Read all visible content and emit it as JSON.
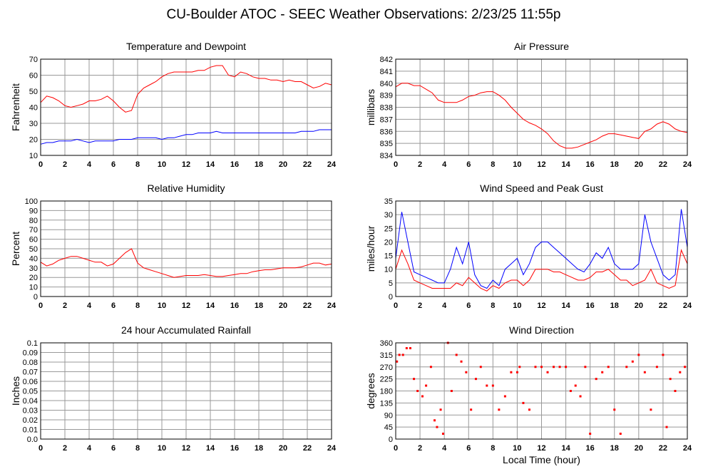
{
  "title": "CU-Boulder ATOC - SEEC Weather Observations: 2/23/25 11:55p",
  "chart_data": [
    {
      "type": "line",
      "title": "Temperature and Dewpoint",
      "ylabel": "Fahrenheit",
      "x": [
        0,
        0.5,
        1,
        1.5,
        2,
        2.5,
        3,
        3.5,
        4,
        4.5,
        5,
        5.5,
        6,
        6.5,
        7,
        7.5,
        8,
        8.5,
        9,
        9.5,
        10,
        10.5,
        11,
        11.5,
        12,
        12.5,
        13,
        13.5,
        14,
        14.5,
        15,
        15.5,
        16,
        16.5,
        17,
        17.5,
        18,
        18.5,
        19,
        19.5,
        20,
        20.5,
        21,
        21.5,
        22,
        22.5,
        23,
        23.5,
        24
      ],
      "series": [
        {
          "color": "#ff0000",
          "values": [
            43,
            47,
            46,
            44,
            41,
            40,
            41,
            42,
            44,
            44,
            45,
            47,
            44,
            40,
            37,
            38,
            48,
            52,
            54,
            56,
            59,
            61,
            62,
            62,
            62,
            62,
            63,
            63,
            65,
            66,
            66,
            60,
            59,
            62,
            61,
            59,
            58,
            58,
            57,
            57,
            56,
            57,
            56,
            56,
            54,
            52,
            53,
            55,
            54
          ]
        },
        {
          "color": "#0000ff",
          "values": [
            17,
            18,
            18,
            19,
            19,
            19,
            20,
            19,
            18,
            19,
            19,
            19,
            19,
            20,
            20,
            20,
            21,
            21,
            21,
            21,
            20,
            21,
            21,
            22,
            23,
            23,
            24,
            24,
            24,
            25,
            24,
            24,
            24,
            24,
            24,
            24,
            24,
            24,
            24,
            24,
            24,
            24,
            24,
            25,
            25,
            25,
            26,
            26,
            26
          ]
        }
      ],
      "xlim": [
        0,
        24
      ],
      "xticks": [
        0,
        2,
        4,
        6,
        8,
        10,
        12,
        14,
        16,
        18,
        20,
        22,
        24
      ],
      "ylim": [
        10,
        70
      ],
      "yticks": [
        10,
        20,
        30,
        40,
        50,
        60,
        70
      ],
      "grid": true
    },
    {
      "type": "line",
      "title": "Air Pressure",
      "ylabel": "millibars",
      "x": [
        0,
        0.5,
        1,
        1.5,
        2,
        2.5,
        3,
        3.5,
        4,
        4.5,
        5,
        5.5,
        6,
        6.5,
        7,
        7.5,
        8,
        8.5,
        9,
        9.5,
        10,
        10.5,
        11,
        11.5,
        12,
        12.5,
        13,
        13.5,
        14,
        14.5,
        15,
        15.5,
        16,
        16.5,
        17,
        17.5,
        18,
        18.5,
        19,
        19.5,
        20,
        20.5,
        21,
        21.5,
        22,
        22.5,
        23,
        23.5,
        24
      ],
      "series": [
        {
          "color": "#ff0000",
          "values": [
            839.7,
            840.0,
            840.0,
            839.8,
            839.8,
            839.5,
            839.2,
            838.6,
            838.4,
            838.4,
            838.4,
            838.6,
            838.9,
            839.0,
            839.2,
            839.3,
            839.3,
            839.0,
            838.6,
            838.0,
            837.5,
            837.0,
            836.7,
            836.5,
            836.2,
            835.8,
            835.2,
            834.8,
            834.6,
            834.6,
            834.7,
            834.9,
            835.1,
            835.3,
            835.6,
            835.8,
            835.8,
            835.7,
            835.6,
            835.5,
            835.4,
            836.0,
            836.2,
            836.6,
            836.8,
            836.6,
            836.2,
            836.0,
            835.9
          ]
        }
      ],
      "xlim": [
        0,
        24
      ],
      "xticks": [
        0,
        2,
        4,
        6,
        8,
        10,
        12,
        14,
        16,
        18,
        20,
        22,
        24
      ],
      "ylim": [
        834,
        842
      ],
      "yticks": [
        834,
        835,
        836,
        837,
        838,
        839,
        840,
        841,
        842
      ],
      "grid": true
    },
    {
      "type": "line",
      "title": "Relative Humidity",
      "ylabel": "Percent",
      "x": [
        0,
        0.5,
        1,
        1.5,
        2,
        2.5,
        3,
        3.5,
        4,
        4.5,
        5,
        5.5,
        6,
        6.5,
        7,
        7.5,
        8,
        8.5,
        9,
        9.5,
        10,
        10.5,
        11,
        11.5,
        12,
        12.5,
        13,
        13.5,
        14,
        14.5,
        15,
        15.5,
        16,
        16.5,
        17,
        17.5,
        18,
        18.5,
        19,
        19.5,
        20,
        20.5,
        21,
        21.5,
        22,
        22.5,
        23,
        23.5,
        24
      ],
      "series": [
        {
          "color": "#ff0000",
          "values": [
            36,
            32,
            34,
            38,
            40,
            42,
            42,
            40,
            38,
            36,
            36,
            32,
            34,
            40,
            46,
            50,
            35,
            30,
            28,
            26,
            24,
            22,
            20,
            21,
            22,
            22,
            22,
            23,
            22,
            21,
            21,
            22,
            23,
            24,
            24,
            26,
            27,
            28,
            28,
            29,
            30,
            30,
            30,
            31,
            33,
            35,
            35,
            33,
            34
          ]
        }
      ],
      "xlim": [
        0,
        24
      ],
      "xticks": [
        0,
        2,
        4,
        6,
        8,
        10,
        12,
        14,
        16,
        18,
        20,
        22,
        24
      ],
      "ylim": [
        0,
        100
      ],
      "yticks": [
        0,
        10,
        20,
        30,
        40,
        50,
        60,
        70,
        80,
        90,
        100
      ],
      "grid": true
    },
    {
      "type": "line",
      "title": "Wind Speed and Peak Gust",
      "ylabel": "miles/hour",
      "x": [
        0,
        0.5,
        1,
        1.5,
        2,
        2.5,
        3,
        3.5,
        4,
        4.5,
        5,
        5.5,
        6,
        6.5,
        7,
        7.5,
        8,
        8.5,
        9,
        9.5,
        10,
        10.5,
        11,
        11.5,
        12,
        12.5,
        13,
        13.5,
        14,
        14.5,
        15,
        15.5,
        16,
        16.5,
        17,
        17.5,
        18,
        18.5,
        19,
        19.5,
        20,
        20.5,
        21,
        21.5,
        22,
        22.5,
        23,
        23.5,
        24
      ],
      "series": [
        {
          "color": "#0000ff",
          "values": [
            14,
            31,
            20,
            9,
            8,
            7,
            6,
            5,
            5,
            10,
            18,
            12,
            20,
            8,
            4,
            3,
            6,
            4,
            10,
            12,
            14,
            8,
            12,
            18,
            20,
            20,
            18,
            16,
            14,
            12,
            10,
            9,
            12,
            16,
            14,
            18,
            12,
            10,
            10,
            10,
            12,
            30,
            20,
            14,
            8,
            6,
            8,
            32,
            18
          ]
        },
        {
          "color": "#ff0000",
          "values": [
            10,
            17,
            12,
            6,
            5,
            4,
            3,
            3,
            3,
            3,
            5,
            4,
            7,
            5,
            3,
            2,
            4,
            3,
            5,
            6,
            6,
            4,
            6,
            10,
            10,
            10,
            9,
            9,
            8,
            7,
            6,
            6,
            7,
            9,
            9,
            10,
            8,
            6,
            6,
            4,
            5,
            6,
            10,
            5,
            4,
            3,
            4,
            17,
            12
          ]
        }
      ],
      "xlim": [
        0,
        24
      ],
      "xticks": [
        0,
        2,
        4,
        6,
        8,
        10,
        12,
        14,
        16,
        18,
        20,
        22,
        24
      ],
      "ylim": [
        0,
        35
      ],
      "yticks": [
        0,
        5,
        10,
        15,
        20,
        25,
        30,
        35
      ],
      "grid": true
    },
    {
      "type": "line",
      "title": "24 hour Accumulated Rainfall",
      "ylabel": "Inches",
      "x": [
        0,
        24
      ],
      "series": [
        {
          "color": "#ff0000",
          "values": [
            0,
            0
          ]
        }
      ],
      "xlim": [
        0,
        24
      ],
      "xticks": [
        0,
        2,
        4,
        6,
        8,
        10,
        12,
        14,
        16,
        18,
        20,
        22,
        24
      ],
      "ylim": [
        0,
        0.1
      ],
      "yticks": [
        {
          "value": 0,
          "label": "0.0"
        },
        0.01,
        0.02,
        0.03,
        0.04,
        0.05,
        0.06,
        0.07,
        0.08,
        0.09,
        0.1
      ],
      "grid": true
    },
    {
      "type": "scatter",
      "title": "Wind Direction",
      "ylabel": "degrees",
      "xlabel": "Local Time (hour)",
      "x": [
        0.1,
        0.3,
        0.6,
        0.9,
        1.2,
        1.5,
        1.8,
        2.2,
        2.5,
        2.9,
        3.2,
        3.4,
        3.7,
        3.9,
        4.3,
        4.6,
        5.0,
        5.4,
        5.8,
        6.2,
        6.6,
        7.0,
        7.5,
        8.0,
        8.5,
        9.0,
        9.5,
        10.0,
        10.2,
        10.5,
        11.0,
        11.5,
        12.0,
        12.5,
        13.0,
        13.5,
        14.0,
        14.4,
        14.8,
        15.2,
        15.6,
        16.0,
        16.5,
        17.0,
        17.5,
        18.0,
        18.5,
        19.0,
        19.5,
        20.0,
        20.5,
        21.0,
        21.5,
        22.0,
        22.3,
        22.6,
        23.0,
        23.4,
        23.8
      ],
      "series": [
        {
          "color": "#ff0000",
          "values": [
            290,
            315,
            315,
            340,
            340,
            225,
            180,
            160,
            200,
            270,
            70,
            45,
            110,
            20,
            360,
            180,
            315,
            290,
            250,
            110,
            225,
            270,
            200,
            200,
            110,
            160,
            250,
            250,
            270,
            135,
            110,
            270,
            270,
            250,
            270,
            270,
            270,
            180,
            200,
            160,
            270,
            20,
            225,
            250,
            270,
            110,
            20,
            270,
            290,
            315,
            250,
            110,
            270,
            315,
            45,
            225,
            180,
            250,
            270
          ]
        }
      ],
      "xlim": [
        0,
        24
      ],
      "xticks": [
        0,
        2,
        4,
        6,
        8,
        10,
        12,
        14,
        16,
        18,
        20,
        22,
        24
      ],
      "ylim": [
        0,
        360
      ],
      "yticks": [
        0,
        45,
        90,
        135,
        180,
        225,
        270,
        315,
        360
      ],
      "grid": true
    }
  ]
}
